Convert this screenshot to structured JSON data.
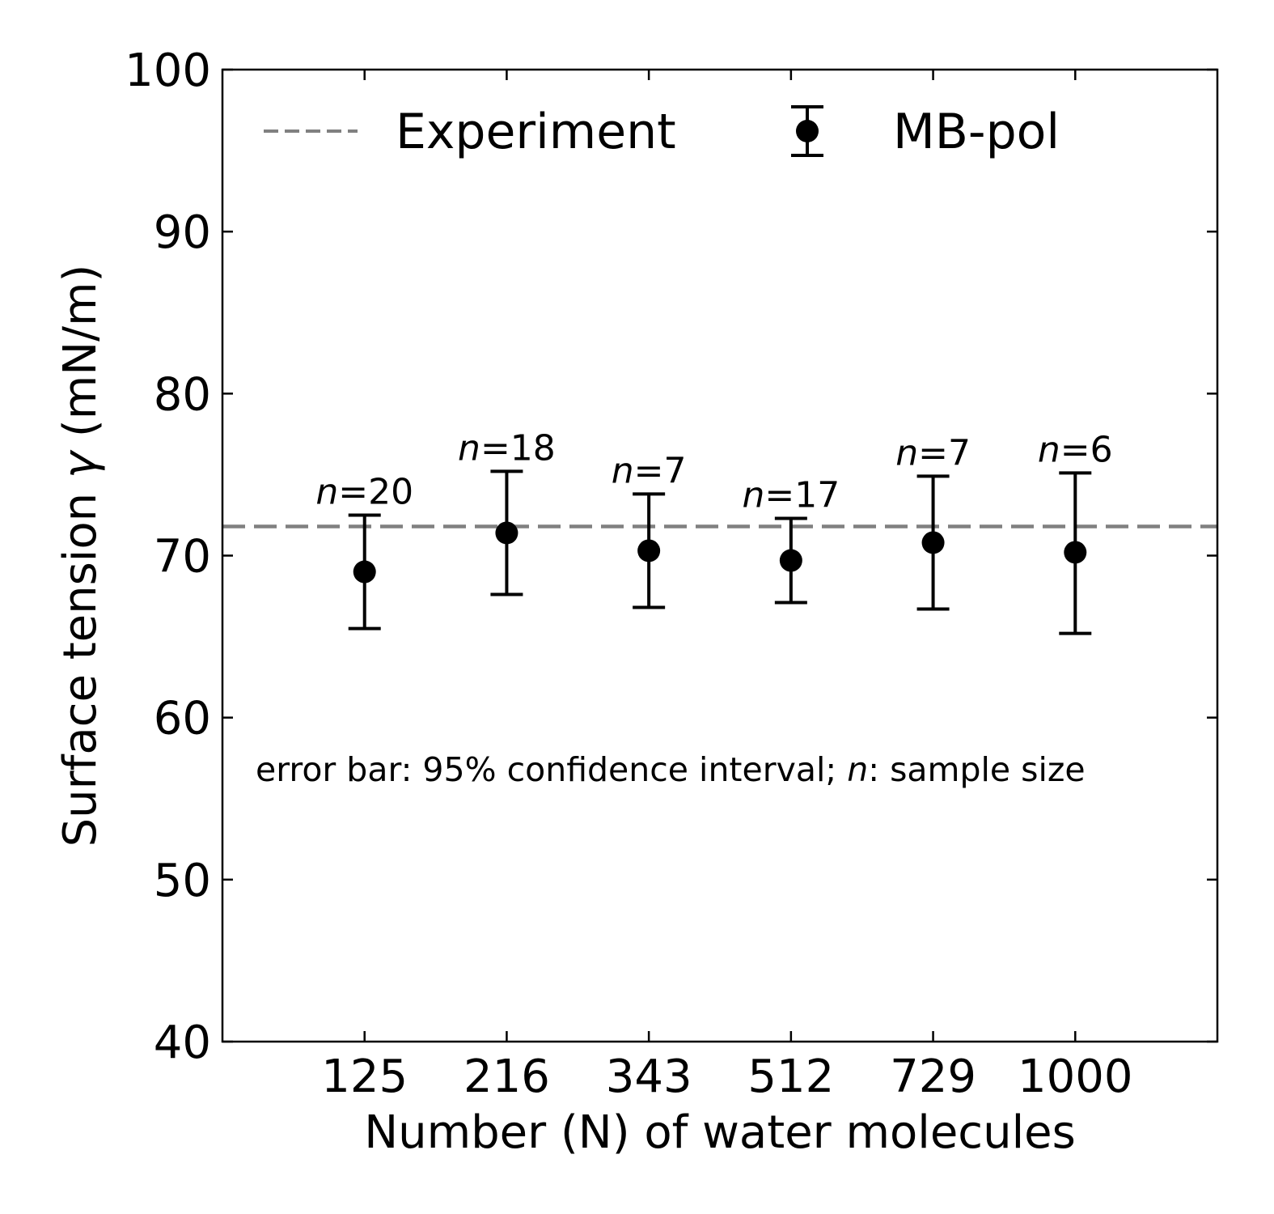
{
  "chart_data": {
    "type": "scatter",
    "xlabel": "Number (N) of water molecules",
    "ylabel_prefix": "Surface tension ",
    "ylabel_symbol": "γ",
    "ylabel_suffix": " (mN/m)",
    "ylim": [
      40,
      100
    ],
    "yticks": [
      40,
      50,
      60,
      70,
      80,
      90,
      100
    ],
    "categories": [
      "125",
      "216",
      "343",
      "512",
      "729",
      "1000"
    ],
    "series": [
      {
        "name": "MB-pol",
        "color": "#000000",
        "values": [
          69.0,
          71.4,
          70.3,
          69.7,
          70.8,
          70.2
        ],
        "err_low": [
          65.5,
          67.6,
          66.8,
          67.1,
          66.7,
          65.2
        ],
        "err_high": [
          72.5,
          75.2,
          73.8,
          72.3,
          74.9,
          75.1
        ]
      }
    ],
    "sample_sizes": [
      "20",
      "18",
      "7",
      "17",
      "7",
      "6"
    ],
    "sample_label": "n",
    "reference": {
      "name": "Experiment",
      "value": 71.8,
      "color": "#808080",
      "style": "dashed"
    },
    "annotation": {
      "prefix": "error bar: 95% confidence interval; ",
      "italic": "n",
      "suffix": ": sample size"
    },
    "legend": {
      "placement": "top",
      "entries": [
        "Experiment",
        "MB-pol"
      ]
    },
    "grid": false,
    "ticks_direction": "in"
  }
}
